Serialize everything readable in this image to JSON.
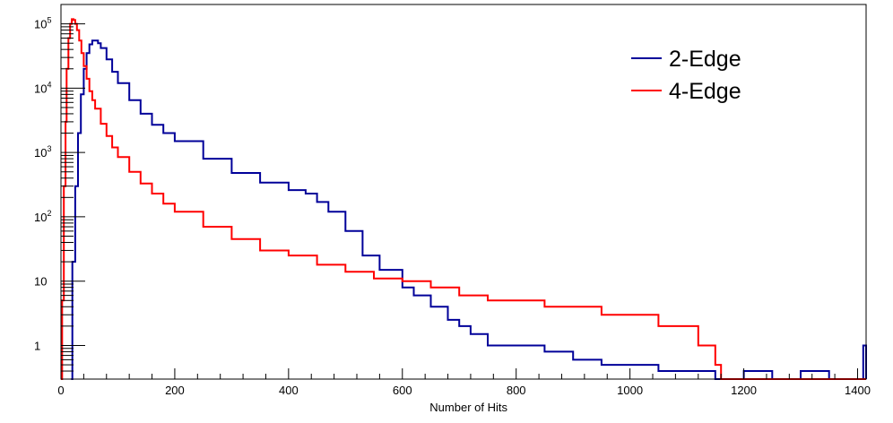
{
  "chart_data": {
    "type": "line",
    "title": "",
    "xlabel": "Number of Hits",
    "ylabel": "",
    "xlim": [
      0,
      1415
    ],
    "ylim": [
      0.3,
      200000
    ],
    "y_scale": "log",
    "grid": false,
    "legend_placement": "top-right",
    "x_tick_labels": [
      "0",
      "200",
      "400",
      "600",
      "800",
      "1000",
      "1200",
      "1400"
    ],
    "y_tick_labels": [
      {
        "value": 1,
        "base": "1",
        "exp": ""
      },
      {
        "value": 10,
        "base": "10",
        "exp": ""
      },
      {
        "value": 100,
        "base": "10",
        "exp": "2"
      },
      {
        "value": 1000,
        "base": "10",
        "exp": "3"
      },
      {
        "value": 10000,
        "base": "10",
        "exp": "4"
      },
      {
        "value": 100000,
        "base": "10",
        "exp": "5"
      }
    ],
    "series": [
      {
        "name": "2-Edge",
        "color": "#000099",
        "x": [
          18,
          20,
          25,
          30,
          35,
          40,
          45,
          50,
          55,
          60,
          65,
          70,
          80,
          90,
          100,
          120,
          140,
          160,
          180,
          200,
          250,
          300,
          350,
          400,
          430,
          450,
          470,
          500,
          530,
          560,
          600,
          620,
          650,
          680,
          700,
          720,
          750,
          800,
          850,
          900,
          950,
          1000,
          1050,
          1100,
          1150,
          1200,
          1250,
          1300,
          1350,
          1400,
          1410,
          1415
        ],
        "y": [
          0.3,
          20,
          300,
          2000,
          8000,
          20000,
          35000,
          48000,
          55000,
          55000,
          50000,
          42000,
          28000,
          18000,
          12000,
          6500,
          4000,
          2700,
          2000,
          1500,
          800,
          480,
          340,
          260,
          230,
          170,
          120,
          60,
          25,
          15,
          8,
          6,
          4,
          2.5,
          2,
          1.5,
          1,
          1,
          0.8,
          0.6,
          0.5,
          0.5,
          0.4,
          0.4,
          0.3,
          0.4,
          0.3,
          0.4,
          0.3,
          0.3,
          1,
          0.3
        ]
      },
      {
        "name": "4-Edge",
        "color": "#ff0000",
        "x": [
          0,
          2,
          5,
          8,
          10,
          13,
          16,
          19,
          22,
          25,
          28,
          32,
          36,
          40,
          45,
          50,
          55,
          60,
          70,
          80,
          90,
          100,
          120,
          140,
          160,
          180,
          200,
          250,
          300,
          350,
          400,
          450,
          500,
          550,
          600,
          650,
          700,
          750,
          800,
          850,
          900,
          950,
          1000,
          1050,
          1100,
          1120,
          1150,
          1160,
          1200,
          1250,
          1300,
          1350,
          1400,
          1415
        ],
        "y": [
          0.3,
          5,
          300,
          3000,
          20000,
          60000,
          100000,
          118000,
          115000,
          100000,
          80000,
          55000,
          35000,
          22000,
          14000,
          9000,
          6500,
          4800,
          2800,
          1800,
          1200,
          850,
          500,
          330,
          230,
          160,
          120,
          70,
          45,
          30,
          25,
          18,
          14,
          11,
          10,
          8,
          6,
          5,
          5,
          4,
          4,
          3,
          3,
          2,
          2,
          1,
          0.5,
          0.3,
          0.3,
          0.3,
          0.3,
          0.3,
          0.3,
          0.3
        ]
      }
    ]
  }
}
